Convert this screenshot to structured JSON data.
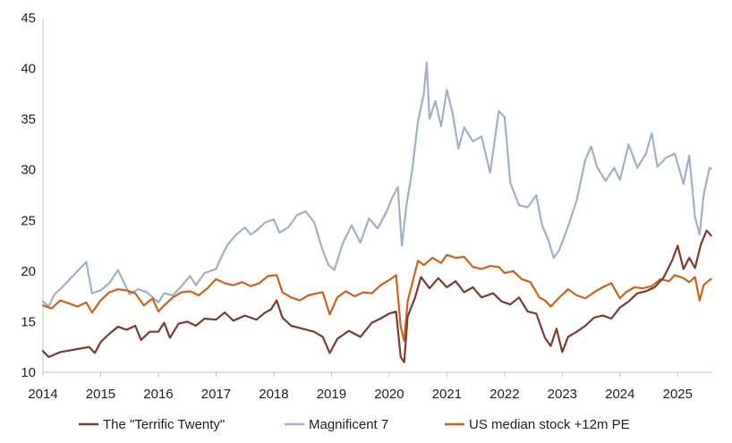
{
  "chart_data": {
    "type": "line",
    "title": "",
    "xlabel": "",
    "ylabel": "",
    "xlim": [
      2014.0,
      2025.6
    ],
    "ylim": [
      10,
      45
    ],
    "yticks": [
      10,
      15,
      20,
      25,
      30,
      35,
      40,
      45
    ],
    "xticks": [
      "2014",
      "2015",
      "2016",
      "2017",
      "2018",
      "2019",
      "2020",
      "2021",
      "2022",
      "2023",
      "2024",
      "2025"
    ],
    "grid": false,
    "legend_position": "bottom",
    "series": [
      {
        "name": "The \"Terrific Twenty\"",
        "color": "#7b3b2f",
        "points": [
          [
            2014.0,
            12.1
          ],
          [
            2014.1,
            11.5
          ],
          [
            2014.3,
            12.0
          ],
          [
            2014.6,
            12.3
          ],
          [
            2014.8,
            12.5
          ],
          [
            2014.9,
            11.9
          ],
          [
            2015.0,
            13.0
          ],
          [
            2015.15,
            13.8
          ],
          [
            2015.3,
            14.5
          ],
          [
            2015.45,
            14.2
          ],
          [
            2015.6,
            14.6
          ],
          [
            2015.7,
            13.2
          ],
          [
            2015.85,
            14.0
          ],
          [
            2016.0,
            14.0
          ],
          [
            2016.1,
            14.9
          ],
          [
            2016.2,
            13.4
          ],
          [
            2016.35,
            14.8
          ],
          [
            2016.5,
            15.0
          ],
          [
            2016.65,
            14.6
          ],
          [
            2016.8,
            15.3
          ],
          [
            2017.0,
            15.2
          ],
          [
            2017.15,
            15.9
          ],
          [
            2017.3,
            15.1
          ],
          [
            2017.5,
            15.6
          ],
          [
            2017.7,
            15.2
          ],
          [
            2017.85,
            15.9
          ],
          [
            2017.95,
            16.2
          ],
          [
            2018.05,
            17.1
          ],
          [
            2018.15,
            15.4
          ],
          [
            2018.3,
            14.6
          ],
          [
            2018.5,
            14.3
          ],
          [
            2018.7,
            14.0
          ],
          [
            2018.85,
            13.5
          ],
          [
            2018.97,
            11.9
          ],
          [
            2019.1,
            13.3
          ],
          [
            2019.3,
            14.1
          ],
          [
            2019.5,
            13.5
          ],
          [
            2019.7,
            14.9
          ],
          [
            2019.85,
            15.3
          ],
          [
            2020.0,
            15.8
          ],
          [
            2020.12,
            16.0
          ],
          [
            2020.2,
            11.5
          ],
          [
            2020.26,
            11.0
          ],
          [
            2020.32,
            15.5
          ],
          [
            2020.45,
            17.4
          ],
          [
            2020.55,
            19.4
          ],
          [
            2020.7,
            18.3
          ],
          [
            2020.85,
            19.3
          ],
          [
            2021.0,
            18.4
          ],
          [
            2021.15,
            19.0
          ],
          [
            2021.3,
            17.9
          ],
          [
            2021.45,
            18.4
          ],
          [
            2021.6,
            17.4
          ],
          [
            2021.8,
            17.8
          ],
          [
            2021.95,
            17.0
          ],
          [
            2022.1,
            16.7
          ],
          [
            2022.25,
            17.4
          ],
          [
            2022.4,
            16.0
          ],
          [
            2022.55,
            15.8
          ],
          [
            2022.7,
            13.4
          ],
          [
            2022.8,
            12.6
          ],
          [
            2022.9,
            14.3
          ],
          [
            2023.0,
            12.0
          ],
          [
            2023.1,
            13.5
          ],
          [
            2023.25,
            14.0
          ],
          [
            2023.4,
            14.6
          ],
          [
            2023.55,
            15.4
          ],
          [
            2023.7,
            15.6
          ],
          [
            2023.85,
            15.3
          ],
          [
            2024.0,
            16.4
          ],
          [
            2024.15,
            17.0
          ],
          [
            2024.3,
            17.8
          ],
          [
            2024.45,
            18.0
          ],
          [
            2024.6,
            18.4
          ],
          [
            2024.75,
            19.3
          ],
          [
            2024.9,
            21.0
          ],
          [
            2025.0,
            22.5
          ],
          [
            2025.1,
            20.2
          ],
          [
            2025.2,
            21.3
          ],
          [
            2025.3,
            20.3
          ],
          [
            2025.4,
            22.6
          ],
          [
            2025.5,
            24.0
          ],
          [
            2025.58,
            23.5
          ]
        ]
      },
      {
        "name": "Magnificent 7",
        "color": "#9fb1c8",
        "points": [
          [
            2014.0,
            17.0
          ],
          [
            2014.1,
            16.5
          ],
          [
            2014.2,
            17.7
          ],
          [
            2014.35,
            18.5
          ],
          [
            2014.5,
            19.4
          ],
          [
            2014.65,
            20.3
          ],
          [
            2014.75,
            20.9
          ],
          [
            2014.85,
            17.8
          ],
          [
            2015.0,
            18.1
          ],
          [
            2015.15,
            18.8
          ],
          [
            2015.3,
            20.1
          ],
          [
            2015.4,
            18.9
          ],
          [
            2015.5,
            17.7
          ],
          [
            2015.65,
            18.2
          ],
          [
            2015.8,
            17.9
          ],
          [
            2016.0,
            16.9
          ],
          [
            2016.1,
            17.8
          ],
          [
            2016.25,
            17.6
          ],
          [
            2016.4,
            18.5
          ],
          [
            2016.55,
            19.5
          ],
          [
            2016.65,
            18.6
          ],
          [
            2016.8,
            19.8
          ],
          [
            2017.0,
            20.2
          ],
          [
            2017.1,
            21.5
          ],
          [
            2017.2,
            22.6
          ],
          [
            2017.35,
            23.6
          ],
          [
            2017.5,
            24.3
          ],
          [
            2017.6,
            23.6
          ],
          [
            2017.7,
            24.0
          ],
          [
            2017.85,
            24.8
          ],
          [
            2018.0,
            25.1
          ],
          [
            2018.1,
            23.8
          ],
          [
            2018.25,
            24.3
          ],
          [
            2018.4,
            25.5
          ],
          [
            2018.55,
            25.9
          ],
          [
            2018.7,
            24.8
          ],
          [
            2018.85,
            22.0
          ],
          [
            2018.95,
            20.6
          ],
          [
            2019.05,
            20.1
          ],
          [
            2019.2,
            22.8
          ],
          [
            2019.35,
            24.5
          ],
          [
            2019.5,
            22.8
          ],
          [
            2019.65,
            25.2
          ],
          [
            2019.8,
            24.2
          ],
          [
            2019.95,
            25.8
          ],
          [
            2020.05,
            27.2
          ],
          [
            2020.15,
            28.3
          ],
          [
            2020.22,
            22.5
          ],
          [
            2020.3,
            26.5
          ],
          [
            2020.4,
            30.0
          ],
          [
            2020.5,
            34.8
          ],
          [
            2020.6,
            37.5
          ],
          [
            2020.65,
            40.6
          ],
          [
            2020.7,
            35.0
          ],
          [
            2020.8,
            36.8
          ],
          [
            2020.9,
            34.3
          ],
          [
            2021.0,
            37.9
          ],
          [
            2021.1,
            35.6
          ],
          [
            2021.2,
            32.1
          ],
          [
            2021.3,
            34.2
          ],
          [
            2021.45,
            32.8
          ],
          [
            2021.6,
            33.3
          ],
          [
            2021.75,
            29.7
          ],
          [
            2021.9,
            35.8
          ],
          [
            2022.0,
            35.2
          ],
          [
            2022.1,
            28.7
          ],
          [
            2022.25,
            26.5
          ],
          [
            2022.4,
            26.3
          ],
          [
            2022.55,
            27.5
          ],
          [
            2022.65,
            24.5
          ],
          [
            2022.75,
            23.2
          ],
          [
            2022.85,
            21.3
          ],
          [
            2022.95,
            22.1
          ],
          [
            2023.1,
            24.4
          ],
          [
            2023.25,
            27.0
          ],
          [
            2023.4,
            31.0
          ],
          [
            2023.5,
            32.3
          ],
          [
            2023.6,
            30.3
          ],
          [
            2023.75,
            28.9
          ],
          [
            2023.9,
            30.2
          ],
          [
            2024.0,
            29.0
          ],
          [
            2024.15,
            32.5
          ],
          [
            2024.3,
            30.2
          ],
          [
            2024.45,
            31.6
          ],
          [
            2024.55,
            33.6
          ],
          [
            2024.65,
            30.3
          ],
          [
            2024.8,
            31.2
          ],
          [
            2024.95,
            31.6
          ],
          [
            2025.1,
            28.6
          ],
          [
            2025.2,
            31.4
          ],
          [
            2025.3,
            25.3
          ],
          [
            2025.38,
            23.6
          ],
          [
            2025.45,
            27.5
          ],
          [
            2025.55,
            30.2
          ],
          [
            2025.58,
            30.1
          ]
        ]
      },
      {
        "name": "US median stock +12m PE",
        "color": "#c8641e",
        "points": [
          [
            2014.0,
            16.6
          ],
          [
            2014.15,
            16.3
          ],
          [
            2014.3,
            17.1
          ],
          [
            2014.45,
            16.8
          ],
          [
            2014.6,
            16.5
          ],
          [
            2014.75,
            16.9
          ],
          [
            2014.85,
            15.9
          ],
          [
            2015.0,
            17.1
          ],
          [
            2015.15,
            17.9
          ],
          [
            2015.3,
            18.2
          ],
          [
            2015.45,
            18.1
          ],
          [
            2015.6,
            17.8
          ],
          [
            2015.75,
            16.6
          ],
          [
            2015.9,
            17.3
          ],
          [
            2016.0,
            16.0
          ],
          [
            2016.1,
            16.6
          ],
          [
            2016.25,
            17.4
          ],
          [
            2016.4,
            17.9
          ],
          [
            2016.55,
            18.0
          ],
          [
            2016.7,
            17.6
          ],
          [
            2016.85,
            18.3
          ],
          [
            2017.0,
            19.2
          ],
          [
            2017.15,
            18.8
          ],
          [
            2017.3,
            18.6
          ],
          [
            2017.45,
            18.9
          ],
          [
            2017.6,
            18.5
          ],
          [
            2017.75,
            18.8
          ],
          [
            2017.9,
            19.5
          ],
          [
            2018.05,
            19.6
          ],
          [
            2018.15,
            17.9
          ],
          [
            2018.3,
            17.4
          ],
          [
            2018.45,
            17.1
          ],
          [
            2018.6,
            17.6
          ],
          [
            2018.75,
            17.8
          ],
          [
            2018.85,
            17.9
          ],
          [
            2018.97,
            15.7
          ],
          [
            2019.1,
            17.4
          ],
          [
            2019.25,
            18.0
          ],
          [
            2019.4,
            17.5
          ],
          [
            2019.55,
            17.9
          ],
          [
            2019.7,
            17.8
          ],
          [
            2019.85,
            18.6
          ],
          [
            2020.0,
            19.1
          ],
          [
            2020.12,
            19.6
          ],
          [
            2020.2,
            14.5
          ],
          [
            2020.26,
            13.1
          ],
          [
            2020.32,
            17.0
          ],
          [
            2020.4,
            18.8
          ],
          [
            2020.5,
            21.0
          ],
          [
            2020.6,
            20.6
          ],
          [
            2020.75,
            21.3
          ],
          [
            2020.9,
            20.8
          ],
          [
            2021.0,
            21.6
          ],
          [
            2021.15,
            21.3
          ],
          [
            2021.3,
            21.4
          ],
          [
            2021.45,
            20.4
          ],
          [
            2021.6,
            20.2
          ],
          [
            2021.75,
            20.5
          ],
          [
            2021.9,
            20.4
          ],
          [
            2022.0,
            19.8
          ],
          [
            2022.15,
            20.0
          ],
          [
            2022.3,
            19.2
          ],
          [
            2022.45,
            18.9
          ],
          [
            2022.6,
            17.4
          ],
          [
            2022.7,
            17.1
          ],
          [
            2022.8,
            16.5
          ],
          [
            2022.95,
            17.4
          ],
          [
            2023.1,
            18.2
          ],
          [
            2023.25,
            17.6
          ],
          [
            2023.4,
            17.3
          ],
          [
            2023.55,
            17.9
          ],
          [
            2023.7,
            18.4
          ],
          [
            2023.85,
            18.8
          ],
          [
            2024.0,
            17.3
          ],
          [
            2024.1,
            17.9
          ],
          [
            2024.25,
            18.4
          ],
          [
            2024.4,
            18.3
          ],
          [
            2024.55,
            18.5
          ],
          [
            2024.7,
            19.2
          ],
          [
            2024.85,
            19.0
          ],
          [
            2024.95,
            19.6
          ],
          [
            2025.1,
            19.3
          ],
          [
            2025.2,
            18.9
          ],
          [
            2025.3,
            19.4
          ],
          [
            2025.38,
            17.1
          ],
          [
            2025.45,
            18.6
          ],
          [
            2025.55,
            19.1
          ],
          [
            2025.58,
            19.2
          ]
        ]
      }
    ]
  }
}
